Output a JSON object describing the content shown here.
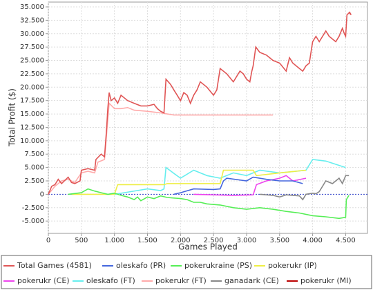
{
  "chart_data": {
    "type": "line",
    "y_label": "Total Profit ($)",
    "x_label": "Games Played",
    "xlim": [
      0,
      4830
    ],
    "ylim": [
      -7300,
      35900
    ],
    "grid": true,
    "legend": "bottom",
    "xticks": [
      0,
      500,
      {
        "value": 1000,
        "label": "1.000"
      },
      {
        "value": 1500,
        "label": "1.500"
      },
      {
        "value": 2000,
        "label": "2.000"
      },
      {
        "value": 2500,
        "label": "2.500"
      },
      {
        "value": 3000,
        "label": "3.000"
      },
      {
        "value": 3500,
        "label": "3.500"
      },
      {
        "value": 4000,
        "label": "4.000"
      },
      {
        "value": 4500,
        "label": "4.500"
      }
    ],
    "yticks": [
      {
        "value": -5000,
        "label": "-5.000"
      },
      {
        "value": -2500,
        "label": "-2.500"
      },
      0,
      {
        "value": 2500,
        "label": "2.500"
      },
      {
        "value": 5000,
        "label": "5.000"
      },
      {
        "value": 7500,
        "label": "7.500"
      },
      {
        "value": 10000,
        "label": "10.000"
      },
      {
        "value": 12500,
        "label": "12.500"
      },
      {
        "value": 15000,
        "label": "15.000"
      },
      {
        "value": 17500,
        "label": "17.500"
      },
      {
        "value": 20000,
        "label": "20.000"
      },
      {
        "value": 22500,
        "label": "22.500"
      },
      {
        "value": 25000,
        "label": "25.000"
      },
      {
        "value": 27500,
        "label": "27.500"
      },
      {
        "value": 30000,
        "label": "30.000"
      },
      {
        "value": 32500,
        "label": "32.500"
      },
      {
        "value": 35000,
        "label": "35.000"
      }
    ],
    "series": [
      {
        "name": "Total Games (4581)",
        "color": "#e05555",
        "x": [
          0,
          50,
          100,
          150,
          200,
          300,
          350,
          400,
          480,
          500,
          600,
          700,
          720,
          800,
          850,
          880,
          900,
          920,
          950,
          1000,
          1050,
          1100,
          1200,
          1300,
          1400,
          1500,
          1600,
          1650,
          1700,
          1750,
          1780,
          1850,
          1900,
          2000,
          2050,
          2100,
          2150,
          2200,
          2250,
          2300,
          2400,
          2500,
          2550,
          2600,
          2700,
          2800,
          2900,
          2950,
          3000,
          3050,
          3080,
          3100,
          3140,
          3200,
          3300,
          3400,
          3500,
          3600,
          3650,
          3700,
          3800,
          3850,
          3900,
          3950,
          4000,
          4050,
          4100,
          4200,
          4250,
          4300,
          4350,
          4400,
          4450,
          4480,
          4500,
          4520,
          4560,
          4581
        ],
        "values": [
          0,
          1500,
          1800,
          2800,
          2000,
          3200,
          2200,
          2000,
          2500,
          4500,
          4800,
          4500,
          6500,
          7500,
          7000,
          12000,
          16000,
          19000,
          17500,
          18000,
          17000,
          18500,
          17500,
          17000,
          16500,
          16500,
          16800,
          16000,
          15500,
          15200,
          21500,
          20500,
          19500,
          17500,
          19000,
          18500,
          17000,
          18500,
          19500,
          21000,
          20000,
          18500,
          19500,
          23500,
          22500,
          21000,
          23000,
          22500,
          21500,
          21000,
          23000,
          24000,
          27500,
          26500,
          26000,
          25000,
          24500,
          23000,
          25500,
          24500,
          23500,
          23000,
          24000,
          24500,
          28500,
          29500,
          28500,
          30500,
          29500,
          29000,
          28500,
          29500,
          31000,
          30000,
          29500,
          33500,
          34000,
          33500
        ]
      },
      {
        "name": "oleskafo (PR)",
        "color": "#4466dd",
        "x": [
          1900,
          2000,
          2200,
          2500,
          2600,
          2650,
          2700,
          3000,
          3100,
          3300,
          3500,
          3700,
          3850
        ],
        "values": [
          0,
          300,
          1000,
          900,
          1000,
          2500,
          3000,
          2500,
          3200,
          2800,
          2500,
          2500,
          2000
        ]
      },
      {
        "name": "pokerukraine (PS)",
        "color": "#55ee55",
        "x": [
          300,
          500,
          600,
          700,
          800,
          900,
          1000,
          1100,
          1200,
          1300,
          1350,
          1400,
          1500,
          1600,
          1700,
          1800,
          1900,
          2000,
          2100,
          2200,
          2300,
          2400,
          2600,
          2800,
          3000,
          3200,
          3400,
          3600,
          3800,
          4000,
          4200,
          4400,
          4500,
          4510,
          4550
        ],
        "values": [
          0,
          300,
          1000,
          600,
          300,
          0,
          200,
          -200,
          -500,
          -1000,
          -500,
          -1200,
          -500,
          -800,
          -300,
          -600,
          -700,
          -800,
          -1000,
          -1500,
          -1500,
          -1800,
          -2000,
          -2500,
          -2800,
          -2500,
          -2800,
          -3200,
          -3500,
          -4000,
          -4200,
          -4500,
          -4300,
          -1000,
          -200
        ]
      },
      {
        "name": "pokerukr (IP)",
        "color": "#eeee44",
        "x": [
          350,
          1000,
          1050,
          1750,
          1800,
          2600,
          2650,
          3100,
          3150,
          3500,
          3900
        ],
        "values": [
          0,
          0,
          1800,
          1800,
          2000,
          2000,
          4500,
          4500,
          3500,
          4000,
          4500
        ]
      },
      {
        "name": "pokerukr (CE)",
        "color": "#ee44ee",
        "x": [
          2200,
          2800,
          3100,
          3150,
          3300,
          3500,
          3600,
          3700,
          3900
        ],
        "values": [
          0,
          -200,
          -100,
          1800,
          2500,
          3000,
          3500,
          2500,
          3000
        ]
      },
      {
        "name": "oleskafo (FT)",
        "color": "#66eeee",
        "x": [
          1000,
          1250,
          1500,
          1700,
          1750,
          1780,
          2000,
          2200,
          2400,
          2600,
          2800,
          3000,
          3200,
          3500,
          3900,
          4000,
          4200,
          4500
        ],
        "values": [
          0,
          500,
          1000,
          700,
          1000,
          5000,
          3000,
          4500,
          3500,
          3000,
          4000,
          3500,
          4500,
          4000,
          4500,
          6500,
          6200,
          5000
        ]
      },
      {
        "name": "pokerukr (FT)",
        "color": "#ffaaaa",
        "x": [
          0,
          100,
          200,
          300,
          400,
          500,
          600,
          700,
          750,
          850,
          880,
          920,
          1000,
          1100,
          1200,
          1300,
          1500,
          1700,
          1800,
          1900,
          2000,
          3400
        ],
        "values": [
          0,
          1500,
          2500,
          2800,
          2200,
          4000,
          4300,
          4000,
          6000,
          6500,
          11000,
          17000,
          16000,
          16000,
          16200,
          15700,
          15500,
          15200,
          15000,
          14800,
          14800,
          14800
        ]
      },
      {
        "name": "ganadark (CE)",
        "color": "#888888",
        "x": [
          3200,
          3400,
          3500,
          3600,
          3800,
          3850,
          3900,
          4000,
          4050,
          4100,
          4200,
          4300,
          4400,
          4450,
          4500,
          4550
        ],
        "values": [
          0,
          -200,
          -500,
          -100,
          -300,
          -1000,
          0,
          200,
          100,
          500,
          2500,
          2000,
          3000,
          2000,
          3500,
          3500
        ]
      },
      {
        "name": "pokerukr (MI)",
        "color": "#bb0000",
        "x": [
          4560,
          4581
        ],
        "values": [
          33800,
          33600
        ]
      }
    ]
  }
}
